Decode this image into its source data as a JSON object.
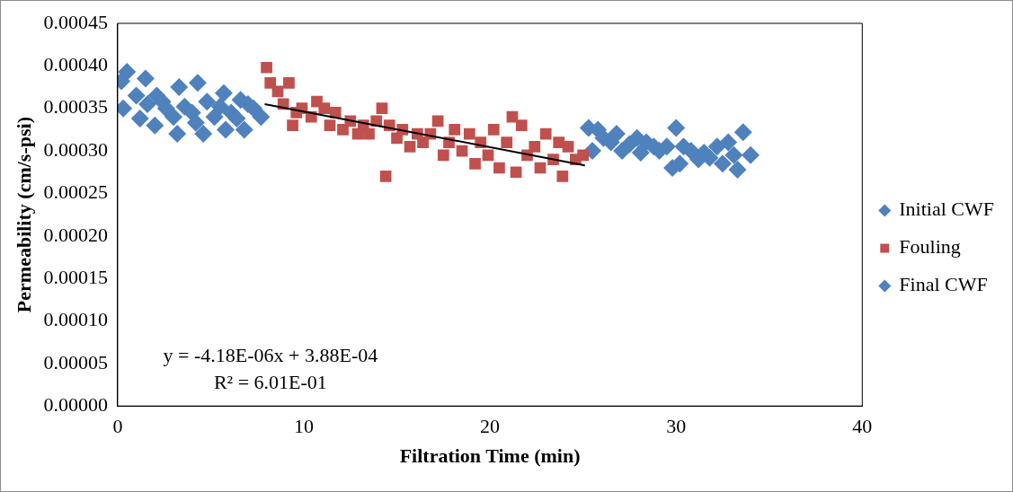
{
  "chart_data": {
    "type": "scatter",
    "xlabel": "Filtration Time (min)",
    "ylabel": "Permeability (cm/s-psi)",
    "xlim": [
      0,
      40
    ],
    "xticks": [
      0,
      10,
      20,
      30,
      40
    ],
    "ylim": [
      0,
      0.00045
    ],
    "yticks": [
      {
        "value": 0,
        "label": "0.00000"
      },
      {
        "value": 5e-05,
        "label": "0.00005"
      },
      {
        "value": 0.0001,
        "label": "0.00010"
      },
      {
        "value": 0.00015,
        "label": "0.00015"
      },
      {
        "value": 0.0002,
        "label": "0.00020"
      },
      {
        "value": 0.00025,
        "label": "0.00025"
      },
      {
        "value": 0.0003,
        "label": "0.00030"
      },
      {
        "value": 0.00035,
        "label": "0.00035"
      },
      {
        "value": 0.0004,
        "label": "0.00040"
      },
      {
        "value": 0.00045,
        "label": "0.00045"
      }
    ],
    "grid": false,
    "legend": "right",
    "annotations": [
      "y = -4.18E-06x + 3.88E-04",
      "R² = 6.01E-01"
    ],
    "series": [
      {
        "name": "Initial CWF",
        "color": "#4f81bd",
        "marker": "diamond",
        "x": [
          0.2,
          0.3,
          0.5,
          0.8,
          1.0,
          1.2,
          1.5,
          1.6,
          2.0,
          2.1,
          2.4,
          2.6,
          3.0,
          3.2,
          3.3,
          3.6,
          4.0,
          4.2,
          4.3,
          4.6,
          4.8,
          5.2,
          5.5,
          5.7,
          5.8,
          6.1,
          6.4,
          6.6,
          6.8,
          7.0,
          7.3,
          7.7
        ],
        "values": [
          0.000382,
          0.00035,
          0.000393,
          null,
          0.000365,
          0.000338,
          0.000385,
          0.000355,
          0.00033,
          0.000365,
          0.000358,
          0.00035,
          0.00034,
          0.00032,
          0.000375,
          0.000352,
          0.000345,
          0.000333,
          0.00038,
          0.00032,
          0.000358,
          0.00034,
          0.000352,
          0.000368,
          0.000325,
          0.000345,
          0.000338,
          0.00036,
          0.000325,
          0.000355,
          0.00035,
          0.00034
        ]
      },
      {
        "name": "Fouling",
        "color": "#c0504d",
        "marker": "square",
        "x": [
          8.0,
          8.2,
          8.6,
          8.9,
          9.2,
          9.4,
          9.6,
          9.9,
          10.4,
          10.7,
          11.1,
          11.4,
          11.7,
          12.1,
          12.5,
          12.9,
          13.2,
          13.5,
          13.9,
          14.2,
          14.4,
          14.6,
          15.0,
          15.3,
          15.7,
          16.1,
          16.4,
          16.8,
          17.2,
          17.5,
          17.8,
          18.1,
          18.5,
          18.9,
          19.2,
          19.5,
          19.9,
          20.2,
          20.5,
          20.9,
          21.2,
          21.4,
          21.7,
          22.0,
          22.4,
          22.7,
          23.0,
          23.4,
          23.7,
          23.9,
          24.2,
          24.6,
          25.0
        ],
        "values": [
          0.000398,
          0.00038,
          0.00037,
          0.000355,
          0.00038,
          0.00033,
          0.000345,
          0.00035,
          0.00034,
          0.000358,
          0.00035,
          0.00033,
          0.000345,
          0.000325,
          0.000335,
          0.00032,
          0.00033,
          0.00032,
          0.000335,
          0.00035,
          0.00027,
          0.00033,
          0.000315,
          0.000325,
          0.000305,
          0.00032,
          0.00031,
          0.00032,
          0.000335,
          0.000295,
          0.00031,
          0.000325,
          0.0003,
          0.00032,
          0.000285,
          0.00031,
          0.000295,
          0.000325,
          0.00028,
          0.00031,
          0.00034,
          0.000275,
          0.00033,
          0.000295,
          0.000305,
          0.00028,
          0.00032,
          0.00029,
          0.00031,
          0.00027,
          0.000305,
          0.00029,
          0.000295
        ]
      },
      {
        "name": "Final CWF",
        "color": "#4f81bd",
        "marker": "diamond",
        "x": [
          25.3,
          25.5,
          25.8,
          26.1,
          26.5,
          26.8,
          27.1,
          27.5,
          27.9,
          28.1,
          28.4,
          28.8,
          29.1,
          29.5,
          29.8,
          30.0,
          30.2,
          30.4,
          30.8,
          31.2,
          31.5,
          31.8,
          32.2,
          32.5,
          32.8,
          33.1,
          33.3,
          33.6,
          33.8,
          34.0
        ],
        "values": [
          0.000327,
          0.0003,
          0.000325,
          0.000315,
          0.00031,
          0.00032,
          0.0003,
          0.000308,
          0.000315,
          0.000298,
          0.00031,
          0.000305,
          0.0003,
          0.000305,
          0.00028,
          0.000327,
          0.000285,
          0.000305,
          0.0003,
          0.00029,
          0.000298,
          0.000292,
          0.000305,
          0.000285,
          0.00031,
          0.000295,
          0.000278,
          0.000322,
          null,
          0.000295
        ]
      },
      {
        "type": "line",
        "color": "#000000",
        "marker": "none",
        "line_style": "solid",
        "x": [
          7.9,
          25.1
        ],
        "values": [
          0.000355,
          0.000283
        ]
      }
    ]
  }
}
